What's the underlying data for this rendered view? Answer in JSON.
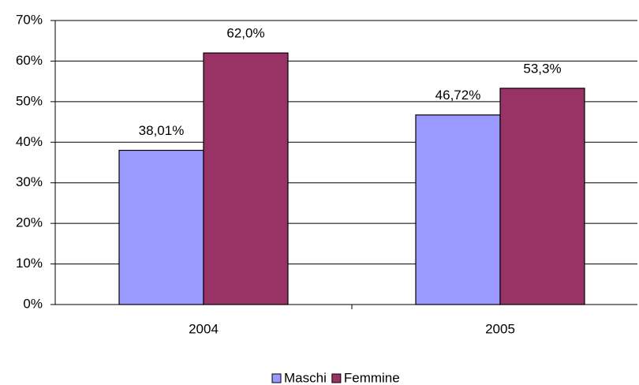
{
  "chart_data": {
    "type": "bar",
    "categories": [
      "2004",
      "2005"
    ],
    "series": [
      {
        "name": "Maschi",
        "color": "#9999ff",
        "values": [
          38.01,
          46.72
        ],
        "value_labels": [
          "38,01%",
          "46,72%"
        ]
      },
      {
        "name": "Femmine",
        "color": "#993366",
        "values": [
          62.0,
          53.3
        ],
        "value_labels": [
          "62,0%",
          "53,3%"
        ]
      }
    ],
    "ylim": [
      0,
      70
    ],
    "yticks": [
      {
        "value": 0,
        "label": "0%"
      },
      {
        "value": 10,
        "label": "10%"
      },
      {
        "value": 20,
        "label": "20%"
      },
      {
        "value": 30,
        "label": "30%"
      },
      {
        "value": 40,
        "label": "40%"
      },
      {
        "value": 50,
        "label": "50%"
      },
      {
        "value": 60,
        "label": "60%"
      },
      {
        "value": 70,
        "label": "70%"
      }
    ],
    "grid": true,
    "legend": "bottom"
  }
}
